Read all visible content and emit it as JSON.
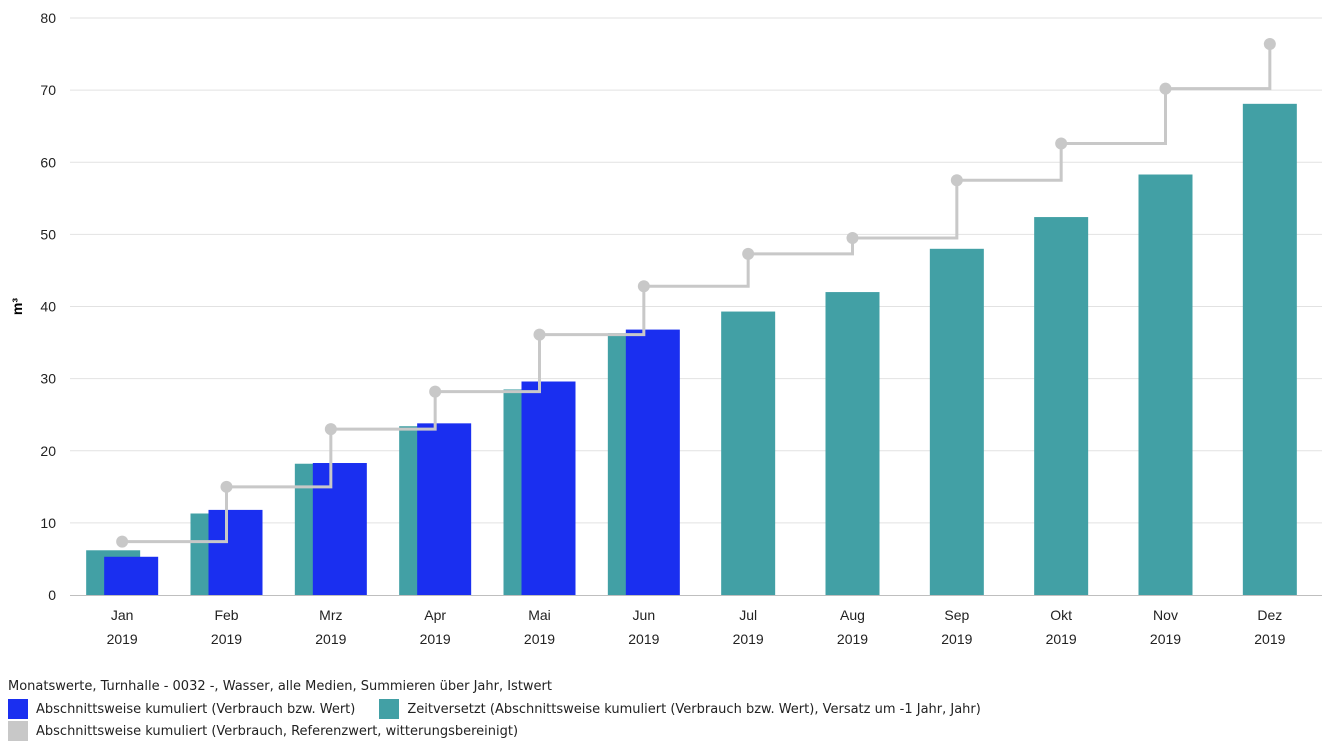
{
  "chart_data": {
    "type": "bar",
    "ylabel": "m³",
    "ylim": [
      0,
      80
    ],
    "yticks": [
      0,
      10,
      20,
      30,
      40,
      50,
      60,
      70,
      80
    ],
    "categories": [
      "Jan",
      "Feb",
      "Mrz",
      "Apr",
      "Mai",
      "Jun",
      "Jul",
      "Aug",
      "Sep",
      "Okt",
      "Nov",
      "Dez"
    ],
    "category_years": [
      "2019",
      "2019",
      "2019",
      "2019",
      "2019",
      "2019",
      "2019",
      "2019",
      "2019",
      "2019",
      "2019",
      "2019"
    ],
    "series": [
      {
        "name": "Zeitversetzt (Abschnittsweise kumuliert (Verbrauch bzw. Wert), Versatz um -1 Jahr, Jahr)",
        "type": "bar",
        "color": "#42a0a5",
        "values": [
          6.2,
          11.3,
          18.2,
          23.4,
          28.5,
          36.3,
          39.3,
          42.0,
          48.0,
          52.4,
          58.3,
          68.1
        ]
      },
      {
        "name": "Abschnittsweise kumuliert (Verbrauch bzw. Wert)",
        "type": "bar",
        "color": "#1a2ff0",
        "values": [
          5.3,
          11.8,
          18.3,
          23.8,
          29.6,
          36.8,
          null,
          null,
          null,
          null,
          null,
          null
        ]
      },
      {
        "name": "Abschnittsweise kumuliert (Verbrauch, Referenzwert, witterungsbereinigt)",
        "type": "step-line",
        "color": "#c8c8c8",
        "values": [
          7.4,
          15.0,
          23.0,
          28.2,
          36.1,
          42.8,
          47.3,
          49.5,
          57.5,
          62.6,
          70.2,
          76.4
        ]
      }
    ],
    "legend_title": "Monatswerte, Turnhalle - 0032 -, Wasser, alle Medien, Summieren über Jahr, Istwert",
    "legend_placement": "bottom-left",
    "grid": true
  },
  "legend": {
    "title": "Monatswerte, Turnhalle - 0032 -, Wasser, alle Medien, Summieren über Jahr, Istwert",
    "items": [
      {
        "label": "Abschnittsweise kumuliert (Verbrauch bzw. Wert)",
        "color": "#1a2ff0"
      },
      {
        "label": "Zeitversetzt (Abschnittsweise kumuliert (Verbrauch bzw. Wert), Versatz um -1 Jahr, Jahr)",
        "color": "#42a0a5"
      },
      {
        "label": "Abschnittsweise kumuliert (Verbrauch, Referenzwert, witterungsbereinigt)",
        "color": "#c8c8c8"
      }
    ]
  }
}
